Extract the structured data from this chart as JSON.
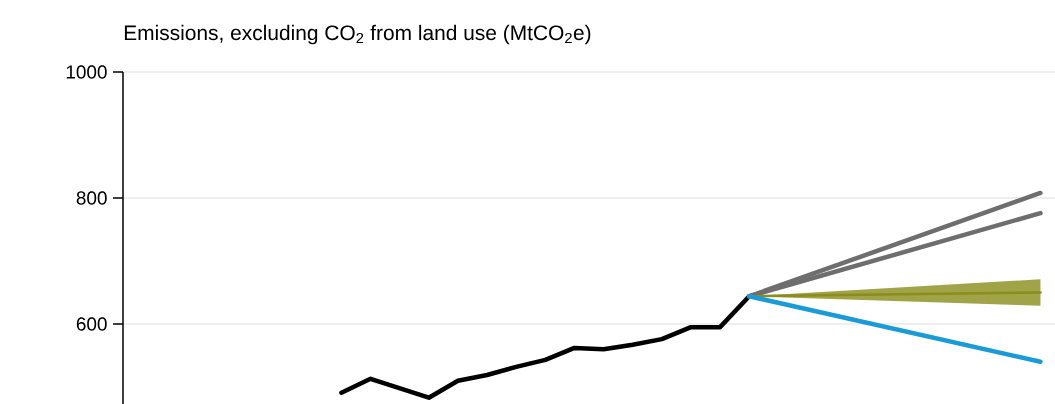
{
  "chart_data": {
    "type": "line",
    "ylabel": "Emissions, excluding CO$_{2}$ from land use (MtCO$_{2}$e)",
    "categories": [
      null,
      null,
      null,
      null,
      null,
      null,
      null,
      null,
      null,
      null,
      null,
      null,
      null,
      null,
      null,
      null,
      null,
      null,
      null,
      null,
      null,
      null,
      null,
      null,
      null,
      null,
      null,
      null,
      null,
      null,
      null,
      null
    ],
    "series": [
      {
        "color": "#000000",
        "values": [
          null,
          null,
          null,
          null,
          null,
          null,
          null,
          491,
          513,
          null,
          483,
          510,
          519,
          532,
          543,
          562,
          560,
          567,
          576,
          595,
          595,
          644,
          null,
          null,
          null,
          null,
          null,
          null,
          null,
          null,
          null,
          null
        ]
      },
      {
        "color": "#6e6e6e",
        "values": [
          null,
          null,
          null,
          null,
          null,
          null,
          null,
          null,
          null,
          null,
          null,
          null,
          null,
          null,
          null,
          null,
          null,
          null,
          null,
          null,
          null,
          644,
          null,
          null,
          null,
          null,
          null,
          null,
          null,
          null,
          null,
          808
        ]
      },
      {
        "color": "#6e6e6e",
        "values": [
          null,
          null,
          null,
          null,
          null,
          null,
          null,
          null,
          null,
          null,
          null,
          null,
          null,
          null,
          null,
          null,
          null,
          null,
          null,
          null,
          null,
          644,
          null,
          null,
          null,
          null,
          null,
          null,
          null,
          null,
          null,
          776
        ]
      },
      {
        "color": "#8a8c1c",
        "values": [
          null,
          null,
          null,
          null,
          null,
          null,
          null,
          null,
          null,
          null,
          null,
          null,
          null,
          null,
          null,
          null,
          null,
          null,
          null,
          null,
          null,
          644,
          null,
          null,
          null,
          null,
          null,
          null,
          null,
          null,
          null,
          650
        ],
        "lower": [
          null,
          null,
          null,
          null,
          null,
          null,
          null,
          null,
          null,
          null,
          null,
          null,
          null,
          null,
          null,
          null,
          null,
          null,
          null,
          null,
          null,
          644,
          null,
          null,
          null,
          null,
          null,
          null,
          null,
          null,
          null,
          629
        ],
        "upper": [
          null,
          null,
          null,
          null,
          null,
          null,
          null,
          null,
          null,
          null,
          null,
          null,
          null,
          null,
          null,
          null,
          null,
          null,
          null,
          null,
          null,
          644,
          null,
          null,
          null,
          null,
          null,
          null,
          null,
          null,
          null,
          671
        ]
      },
      {
        "color": "#1a9ad6",
        "values": [
          null,
          null,
          null,
          null,
          null,
          null,
          null,
          null,
          null,
          null,
          null,
          null,
          null,
          null,
          null,
          null,
          null,
          null,
          null,
          null,
          null,
          644,
          null,
          null,
          null,
          null,
          null,
          null,
          null,
          null,
          null,
          540
        ]
      }
    ],
    "ylim": [
      473,
      1000
    ],
    "yticks": [
      600,
      800,
      1000
    ],
    "grid": "y",
    "tick_labels": "y"
  }
}
